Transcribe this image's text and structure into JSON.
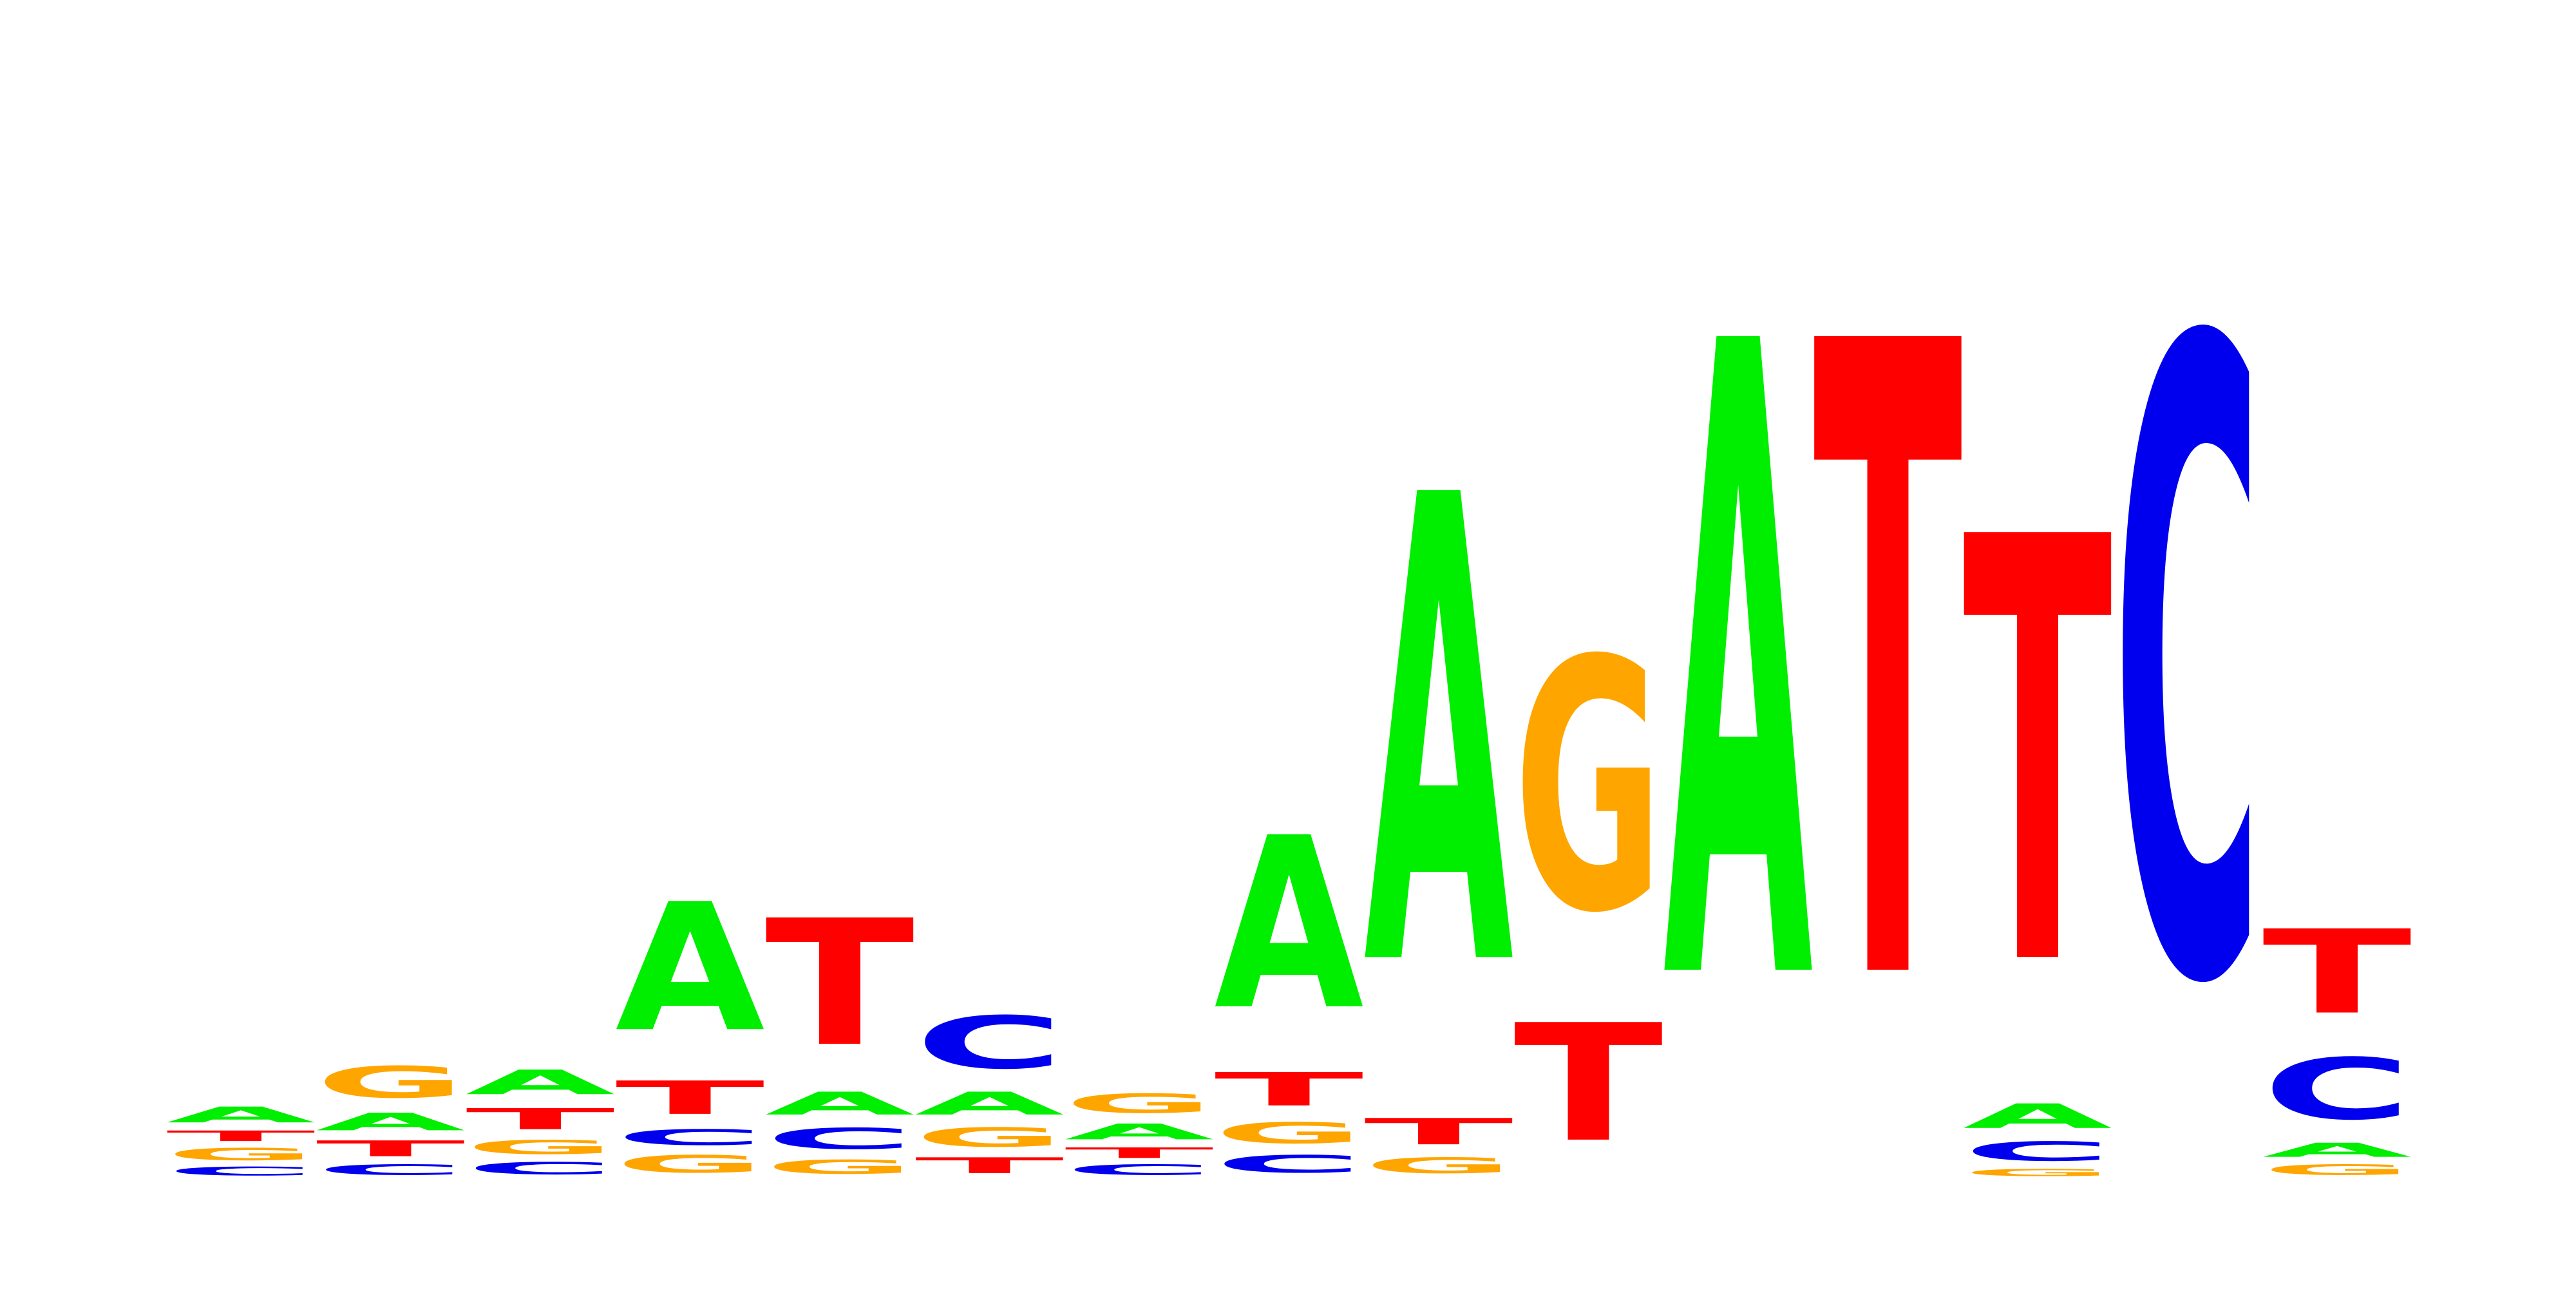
{
  "logo": {
    "type": "sequence-logo",
    "alphabet": [
      "A",
      "C",
      "G",
      "T"
    ],
    "colors": {
      "A": "#00ee00",
      "C": "#0000ee",
      "G": "#ffa500",
      "T": "#ff0000"
    },
    "positions": [
      {
        "stack": [
          {
            "base": "C",
            "height": 0.025
          },
          {
            "base": "G",
            "height": 0.035
          },
          {
            "base": "T",
            "height": 0.03
          },
          {
            "base": "A",
            "height": 0.045
          }
        ]
      },
      {
        "stack": [
          {
            "base": "C",
            "height": 0.03
          },
          {
            "base": "T",
            "height": 0.045
          },
          {
            "base": "A",
            "height": 0.05
          },
          {
            "base": "G",
            "height": 0.09
          }
        ]
      },
      {
        "stack": [
          {
            "base": "C",
            "height": 0.035
          },
          {
            "base": "G",
            "height": 0.04
          },
          {
            "base": "T",
            "height": 0.06
          },
          {
            "base": "A",
            "height": 0.07
          }
        ]
      },
      {
        "stack": [
          {
            "base": "G",
            "height": 0.05
          },
          {
            "base": "C",
            "height": 0.045
          },
          {
            "base": "T",
            "height": 0.095
          },
          {
            "base": "A",
            "height": 0.365
          }
        ]
      },
      {
        "stack": [
          {
            "base": "G",
            "height": 0.04
          },
          {
            "base": "C",
            "height": 0.06
          },
          {
            "base": "A",
            "height": 0.065
          },
          {
            "base": "T",
            "height": 0.36
          }
        ]
      },
      {
        "stack": [
          {
            "base": "T",
            "height": 0.045
          },
          {
            "base": "G",
            "height": 0.055
          },
          {
            "base": "A",
            "height": 0.065
          },
          {
            "base": "C",
            "height": 0.15
          }
        ]
      },
      {
        "stack": [
          {
            "base": "C",
            "height": 0.03
          },
          {
            "base": "T",
            "height": 0.03
          },
          {
            "base": "A",
            "height": 0.045
          },
          {
            "base": "G",
            "height": 0.055
          }
        ]
      },
      {
        "stack": [
          {
            "base": "C",
            "height": 0.05
          },
          {
            "base": "G",
            "height": 0.06
          },
          {
            "base": "T",
            "height": 0.095
          },
          {
            "base": "A",
            "height": 0.49
          }
        ]
      },
      {
        "stack": [
          {
            "base": "G",
            "height": 0.045
          },
          {
            "base": "T",
            "height": 0.075
          },
          {
            "base": "A",
            "height": 1.33
          }
        ]
      },
      {
        "stack": [
          {
            "base": "T",
            "height": 0.335
          },
          {
            "base": "G",
            "height": 0.715
          }
        ]
      },
      {
        "stack": [
          {
            "base": "A",
            "height": 1.805
          }
        ]
      },
      {
        "stack": [
          {
            "base": "T",
            "height": 1.805
          }
        ]
      },
      {
        "stack": [
          {
            "base": "G",
            "height": 0.02
          },
          {
            "base": "C",
            "height": 0.055
          },
          {
            "base": "A",
            "height": 0.07
          },
          {
            "base": "T",
            "height": 1.21
          }
        ]
      },
      {
        "stack": [
          {
            "base": "C",
            "height": 1.805
          }
        ]
      },
      {
        "stack": [
          {
            "base": "G",
            "height": 0.03
          },
          {
            "base": "A",
            "height": 0.04
          },
          {
            "base": "C",
            "height": 0.175
          },
          {
            "base": "T",
            "height": 0.24
          }
        ]
      }
    ]
  }
}
